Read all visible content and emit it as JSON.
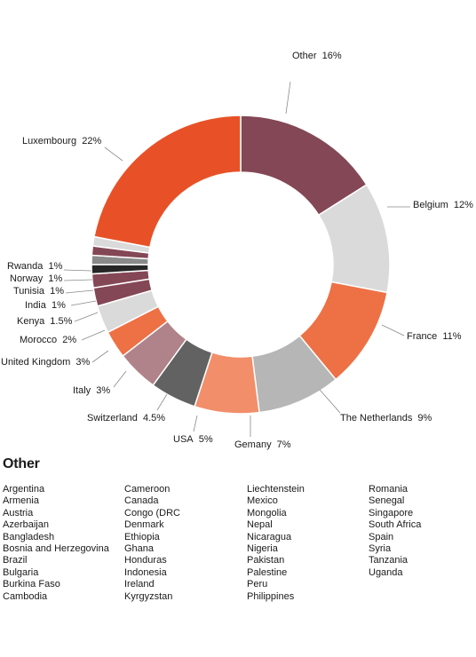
{
  "chart_data": {
    "type": "donut",
    "slices": [
      {
        "label": "Other",
        "value": 16,
        "text": "16%",
        "color": "#844755"
      },
      {
        "label": "Belgium",
        "value": 12,
        "text": "12%",
        "color": "#dadada"
      },
      {
        "label": "France",
        "value": 11,
        "text": "11%",
        "color": "#ee7045"
      },
      {
        "label": "The Netherlands",
        "value": 9,
        "text": "9%",
        "color": "#b6b6b6"
      },
      {
        "label": "Gemany",
        "value": 7,
        "text": "7%",
        "color": "#f28e6a"
      },
      {
        "label": "USA",
        "value": 5,
        "text": "5%",
        "color": "#626262"
      },
      {
        "label": "Switzerland",
        "value": 4.5,
        "text": "4.5%",
        "color": "#b0828a"
      },
      {
        "label": "Italy",
        "value": 3,
        "text": "3%",
        "color": "#ee7045"
      },
      {
        "label": "United Kingdom",
        "value": 3,
        "text": "3%",
        "color": "#dadada"
      },
      {
        "label": "Morocco",
        "value": 2,
        "text": "2%",
        "color": "#844755"
      },
      {
        "label": "Kenya",
        "value": 1.5,
        "text": "1.5%",
        "color": "#844755"
      },
      {
        "label": "India",
        "value": 1,
        "text": "1%",
        "color": "#262626"
      },
      {
        "label": "Tunisia",
        "value": 1,
        "text": "1%",
        "color": "#8a8a8a"
      },
      {
        "label": "Norway",
        "value": 1,
        "text": "1%",
        "color": "#844755"
      },
      {
        "label": "Rwanda",
        "value": 1,
        "text": "1%",
        "color": "#dadada"
      },
      {
        "label": "Luxembourg",
        "value": 22,
        "text": "22%",
        "color": "#e85127"
      }
    ]
  },
  "other": {
    "title": "Other",
    "columns": [
      [
        "Argentina",
        "Armenia",
        "Austria",
        "Azerbaijan",
        "Bangladesh",
        "Bosnia and Herzegovina",
        "Brazil",
        "Bulgaria",
        "Burkina Faso",
        "Cambodia"
      ],
      [
        "Cameroon",
        "Canada",
        "Congo (DRC",
        "Denmark",
        "Ethiopia",
        "Ghana",
        "Honduras",
        "Indonesia",
        "Ireland",
        "Kyrgyzstan"
      ],
      [
        "Liechtenstein",
        "Mexico",
        "Mongolia",
        "Nepal",
        "Nicaragua",
        "Nigeria",
        "Pakistan",
        "Palestine",
        "Peru",
        "Philippines"
      ],
      [
        "Romania",
        "Senegal",
        "Singapore",
        "South Africa",
        "Spain",
        "Syria",
        "Tanzania",
        "Uganda"
      ]
    ]
  }
}
